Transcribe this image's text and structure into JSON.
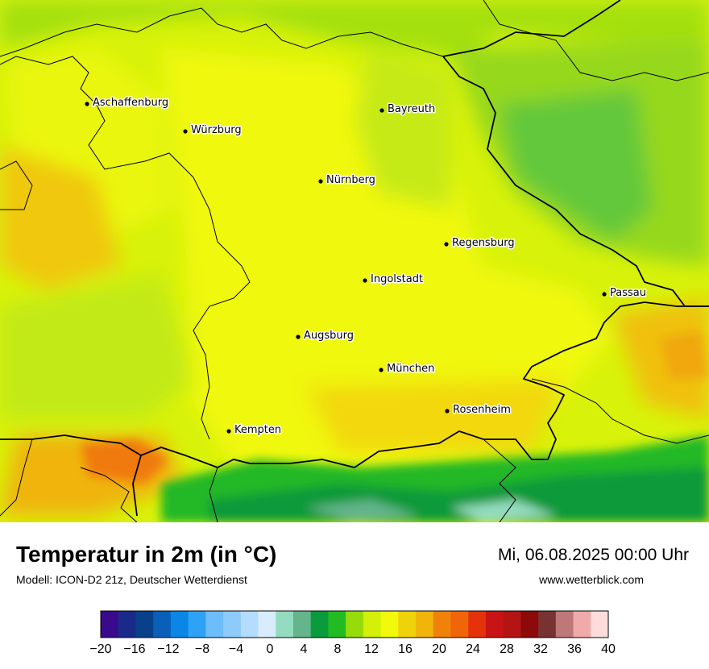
{
  "map": {
    "cities": [
      {
        "name": "Aschaffenburg",
        "id": "aschaffenburg"
      },
      {
        "name": "Würzburg",
        "id": "wuerzburg"
      },
      {
        "name": "Bayreuth",
        "id": "bayreuth"
      },
      {
        "name": "Nürnberg",
        "id": "nuernberg"
      },
      {
        "name": "Regensburg",
        "id": "regensburg"
      },
      {
        "name": "Ingolstadt",
        "id": "ingolstadt"
      },
      {
        "name": "Passau",
        "id": "passau"
      },
      {
        "name": "Augsburg",
        "id": "augsburg"
      },
      {
        "name": "München",
        "id": "muenchen"
      },
      {
        "name": "Rosenheim",
        "id": "rosenheim"
      },
      {
        "name": "Kempten",
        "id": "kempten"
      }
    ]
  },
  "footer": {
    "title": "Temperatur in 2m (in °C)",
    "subtitle": "Modell: ICON-D2 21z, Deutscher Wetterdienst",
    "datetime": "Mi, 06.08.2025 00:00 Uhr",
    "website": "www.wetterblick.com"
  },
  "legend": {
    "colors": [
      "#3a0a8c",
      "#1a2a8a",
      "#08418a",
      "#0a5fb8",
      "#0a86e6",
      "#2ea3f5",
      "#6cbdf9",
      "#8ccbfa",
      "#b4dcfc",
      "#d8ecfc",
      "#94dcc0",
      "#64b48c",
      "#0a9c3c",
      "#22bc22",
      "#96dc0a",
      "#d2f00a",
      "#f0fa0a",
      "#f0d20a",
      "#f0b40a",
      "#f0820a",
      "#f0640a",
      "#e6320a",
      "#c81414",
      "#b41414",
      "#8c0a0a",
      "#783232",
      "#be7878",
      "#f0aaaa",
      "#ffdcdc"
    ],
    "tick_labels": [
      "−20",
      "−16",
      "−12",
      "−8",
      "−4",
      "0",
      "4",
      "8",
      "12",
      "16",
      "20",
      "24",
      "28",
      "32",
      "36",
      "40"
    ]
  }
}
